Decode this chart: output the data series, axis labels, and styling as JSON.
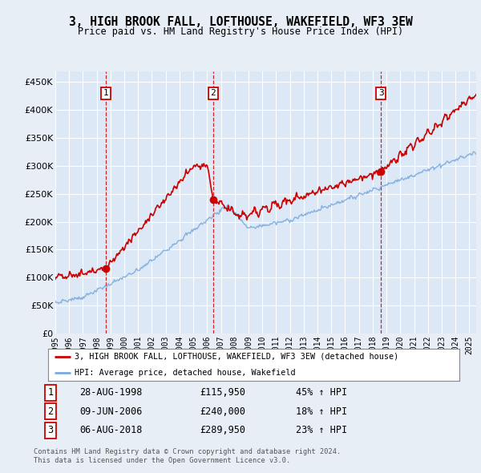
{
  "title": "3, HIGH BROOK FALL, LOFTHOUSE, WAKEFIELD, WF3 3EW",
  "subtitle": "Price paid vs. HM Land Registry's House Price Index (HPI)",
  "red_legend": "3, HIGH BROOK FALL, LOFTHOUSE, WAKEFIELD, WF3 3EW (detached house)",
  "blue_legend": "HPI: Average price, detached house, Wakefield",
  "footer1": "Contains HM Land Registry data © Crown copyright and database right 2024.",
  "footer2": "This data is licensed under the Open Government Licence v3.0.",
  "transactions": [
    {
      "label": "1",
      "date": "28-AUG-1998",
      "price": 115950,
      "hpi_pct": "45%",
      "direction": "↑"
    },
    {
      "label": "2",
      "date": "09-JUN-2006",
      "price": 240000,
      "hpi_pct": "18%",
      "direction": "↑"
    },
    {
      "label": "3",
      "date": "06-AUG-2018",
      "price": 289950,
      "hpi_pct": "23%",
      "direction": "↑"
    }
  ],
  "transaction_years": [
    1998.65,
    2006.44,
    2018.6
  ],
  "transaction_prices": [
    115950,
    240000,
    289950
  ],
  "ylim": [
    0,
    470000
  ],
  "yticks": [
    0,
    50000,
    100000,
    150000,
    200000,
    250000,
    300000,
    350000,
    400000,
    450000
  ],
  "background_color": "#e8eef5",
  "plot_bg_color": "#dce8f5",
  "grid_color": "#ffffff",
  "red_line_color": "#cc0000",
  "blue_line_color": "#7aaadd",
  "dashed_line_color": "#cc0000"
}
